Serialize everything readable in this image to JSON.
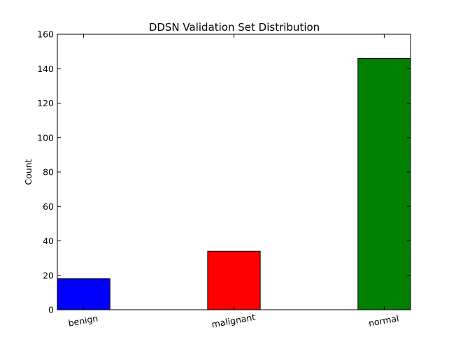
{
  "chart_data": {
    "type": "bar",
    "title": "DDSN Validation Set Distribution",
    "xlabel": "",
    "ylabel": "Count",
    "categories": [
      "benign",
      "malignant",
      "normal"
    ],
    "values": [
      18,
      34,
      146
    ],
    "ylim": [
      0,
      160
    ],
    "yticks": [
      "0",
      "20",
      "40",
      "60",
      "80",
      "100",
      "120",
      "140",
      "160"
    ],
    "grid": false,
    "legend": "none",
    "colors": [
      "#0000ff",
      "#ff0000",
      "#008000"
    ],
    "edge_color": "#000000",
    "xtick_rotation": "rotated ~10°"
  }
}
